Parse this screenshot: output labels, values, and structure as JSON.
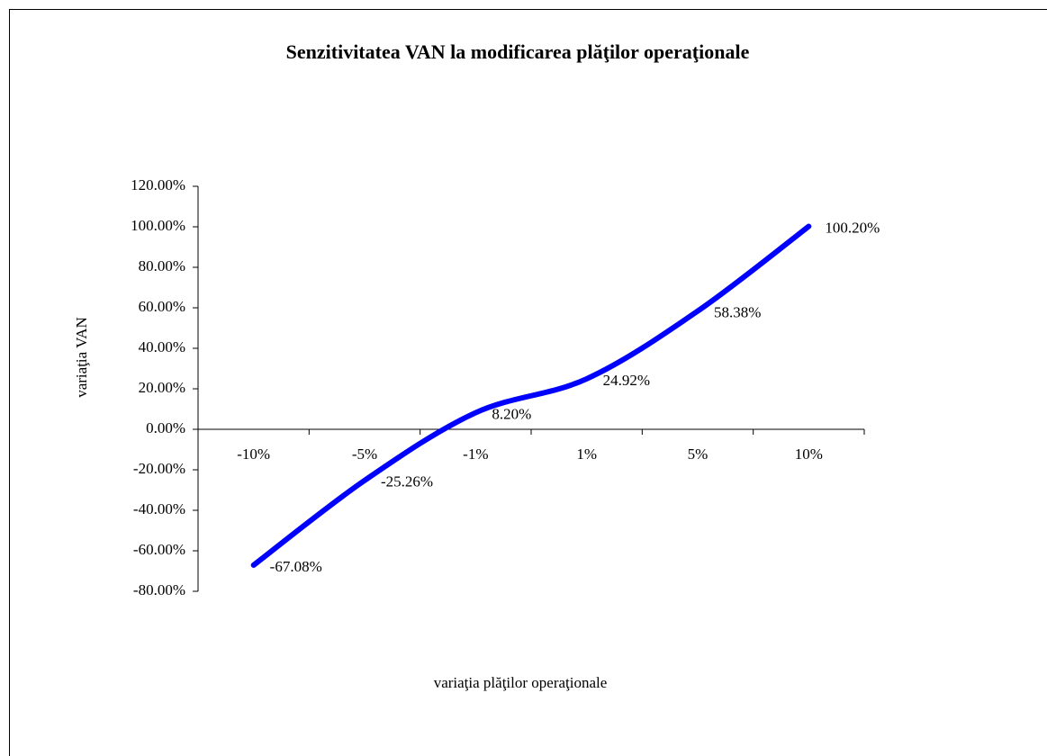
{
  "chart_data": {
    "type": "line",
    "title": "Senzitivitatea VAN la modificarea plăţilor  operaţionale",
    "ylabel": "variaţia  VAN",
    "xlabel": "variaţia  plăţilor  operaţionale",
    "categories": [
      "-10%",
      "-5%",
      "-1%",
      "1%",
      "5%",
      "10%"
    ],
    "values": [
      -67.08,
      -25.26,
      8.2,
      24.92,
      58.38,
      100.2
    ],
    "value_labels": [
      "-67.08%",
      "-25.26%",
      "8.20%",
      "24.92%",
      "58.38%",
      "100.20%"
    ],
    "color": "#0000ff",
    "smooth": true,
    "ylim": [
      -80,
      120
    ],
    "yticks": [
      {
        "value": -80,
        "label": "-80.00%"
      },
      {
        "value": -60,
        "label": "-60.00%"
      },
      {
        "value": -40,
        "label": "-40.00%"
      },
      {
        "value": -20,
        "label": "-20.00%"
      },
      {
        "value": 0,
        "label": "0.00%"
      },
      {
        "value": 20,
        "label": "20.00%"
      },
      {
        "value": 40,
        "label": "40.00%"
      },
      {
        "value": 60,
        "label": "60.00%"
      },
      {
        "value": 80,
        "label": "80.00%"
      },
      {
        "value": 100,
        "label": "100.00%"
      },
      {
        "value": 120,
        "label": "120.00%"
      }
    ],
    "grid": false
  }
}
